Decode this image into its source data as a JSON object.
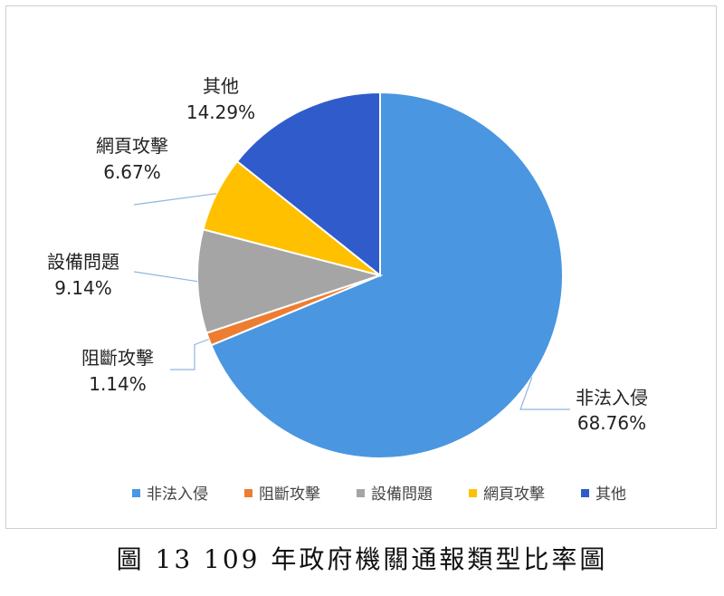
{
  "caption": "圖 13 109 年政府機關通報類型比率圖",
  "chart_data": {
    "type": "pie",
    "start_angle_deg": 0,
    "direction": "clockwise",
    "legend_position": "bottom",
    "slices": [
      {
        "label": "非法入侵",
        "value": 68.76,
        "display": "68.76%",
        "color": "#4A96E0"
      },
      {
        "label": "阻斷攻擊",
        "value": 1.14,
        "display": "1.14%",
        "color": "#ED7D31"
      },
      {
        "label": "設備問題",
        "value": 9.14,
        "display": "9.14%",
        "color": "#A5A5A5"
      },
      {
        "label": "網頁攻擊",
        "value": 6.67,
        "display": "6.67%",
        "color": "#FFC000"
      },
      {
        "label": "其他",
        "value": 14.29,
        "display": "14.29%",
        "color": "#2F5BCB"
      }
    ]
  }
}
